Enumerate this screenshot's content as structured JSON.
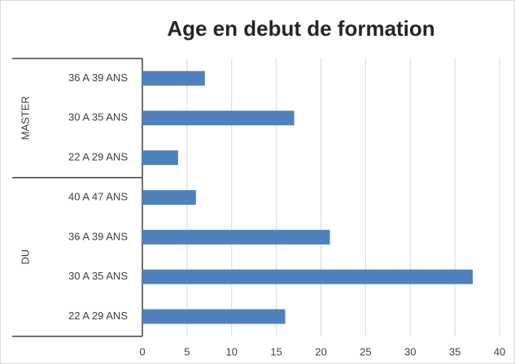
{
  "chart_data": {
    "type": "bar",
    "title": "Age en debut de formation",
    "groups": [
      {
        "name": "MASTER",
        "categories": [
          "36 A 39 ANS",
          "30 A 35 ANS",
          "22 A 29 ANS"
        ],
        "values": [
          7,
          17,
          4
        ]
      },
      {
        "name": "DU",
        "categories": [
          "40 A 47 ANS",
          "36 A 39 ANS",
          "30 A 35 ANS",
          "22 A 29 ANS"
        ],
        "values": [
          6,
          21,
          37,
          16
        ]
      }
    ],
    "color": "#4f81bd",
    "xlim": [
      0,
      40
    ],
    "xticks": [
      0,
      5,
      10,
      15,
      20,
      25,
      30,
      35,
      40
    ],
    "grid": true
  }
}
